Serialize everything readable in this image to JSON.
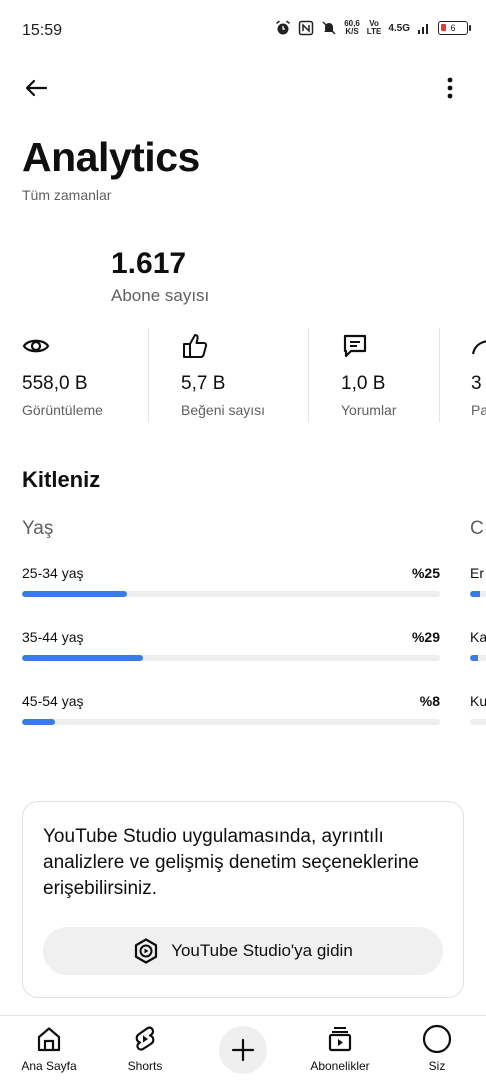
{
  "status_bar": {
    "time": "15:59",
    "speed_value": "60,6",
    "speed_unit": "K/S",
    "volte_top": "Vo",
    "volte_bottom": "LTE",
    "network": "4.5G",
    "battery": "6",
    "icons": [
      "alarm-icon",
      "nfc-icon",
      "mute-icon",
      "signal-icon"
    ]
  },
  "top_bar": {
    "back_icon": "arrow-left-icon",
    "more_icon": "more-vertical-icon"
  },
  "header": {
    "title": "Analytics",
    "subtitle": "Tüm zamanlar"
  },
  "subscribers": {
    "count": "1.617",
    "label": "Abone sayısı"
  },
  "metrics": [
    {
      "icon": "eye-icon",
      "value": "558,0 B",
      "label": "Görüntüleme"
    },
    {
      "icon": "thumbs-up-icon",
      "value": "5,7 B",
      "label": "Beğeni sayısı"
    },
    {
      "icon": "comment-icon",
      "value": "1,0 B",
      "label": "Yorumlar"
    },
    {
      "icon": "share-icon",
      "value": "3",
      "label": "Pa"
    }
  ],
  "audience": {
    "title": "Kitleniz",
    "age": {
      "title": "Yaş",
      "rows": [
        {
          "label": "25-34 yaş",
          "pct_text": "%25",
          "pct": 25
        },
        {
          "label": "35-44 yaş",
          "pct_text": "%29",
          "pct": 29
        },
        {
          "label": "45-54 yaş",
          "pct_text": "%8",
          "pct": 8
        }
      ]
    },
    "gender": {
      "title": "C",
      "rows": [
        {
          "label": "Er",
          "pct": 60
        },
        {
          "label": "Ka",
          "pct": 50
        },
        {
          "label": "Ku",
          "pct": 0
        }
      ]
    }
  },
  "promo": {
    "text": "YouTube Studio uygulamasında, ayrıntılı analizlere ve gelişmiş denetim seçeneklerine erişebilirsiniz.",
    "button_label": "YouTube Studio'ya gidin",
    "button_icon": "youtube-studio-icon"
  },
  "bottom_nav": {
    "home": "Ana Sayfa",
    "shorts": "Shorts",
    "create_icon": "plus-icon",
    "subscriptions": "Abonelikler",
    "you": "Siz"
  },
  "colors": {
    "accent": "#3b7be6",
    "battery_low": "#e53935",
    "text_secondary": "#606060"
  }
}
